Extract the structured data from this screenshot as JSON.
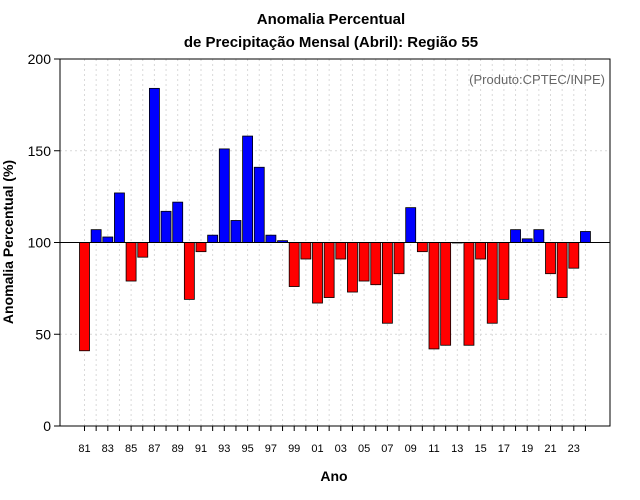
{
  "chart_data": {
    "type": "bar",
    "title": "Anomalia Percentual",
    "subtitle": "de Precipitação Mensal (Abril): Região 55",
    "xlabel": "Ano",
    "ylabel": "Anomalia Percentual (%)",
    "annotation": "(Produto:CPTEC/INPE)",
    "ylim": [
      0,
      200
    ],
    "yticks": [
      0,
      50,
      100,
      150,
      200
    ],
    "baseline": 100,
    "grid": true,
    "colors": {
      "above": "#0000ff",
      "below": "#ff0000",
      "grid": "#d9d9d9"
    },
    "categories": [
      "81",
      "82",
      "83",
      "84",
      "85",
      "86",
      "87",
      "88",
      "89",
      "90",
      "91",
      "92",
      "93",
      "94",
      "95",
      "96",
      "97",
      "98",
      "99",
      "00",
      "01",
      "02",
      "03",
      "04",
      "05",
      "06",
      "07",
      "08",
      "09",
      "10",
      "11",
      "12",
      "13",
      "14",
      "15",
      "16",
      "17",
      "18",
      "19",
      "20",
      "21",
      "22",
      "23",
      "24"
    ],
    "xtick_labels": [
      "81",
      "83",
      "85",
      "87",
      "89",
      "91",
      "93",
      "95",
      "97",
      "99",
      "01",
      "03",
      "05",
      "07",
      "09",
      "11",
      "13",
      "15",
      "17",
      "19",
      "21",
      "23"
    ],
    "values": [
      41,
      107,
      103,
      127,
      79,
      92,
      184,
      117,
      122,
      69,
      95,
      104,
      151,
      112,
      158,
      141,
      104,
      101,
      76,
      91,
      67,
      70,
      91,
      73,
      79,
      77,
      56,
      83,
      119,
      95,
      42,
      44,
      100,
      44,
      91,
      56,
      69,
      107,
      102,
      107,
      83,
      70,
      86,
      106
    ]
  }
}
